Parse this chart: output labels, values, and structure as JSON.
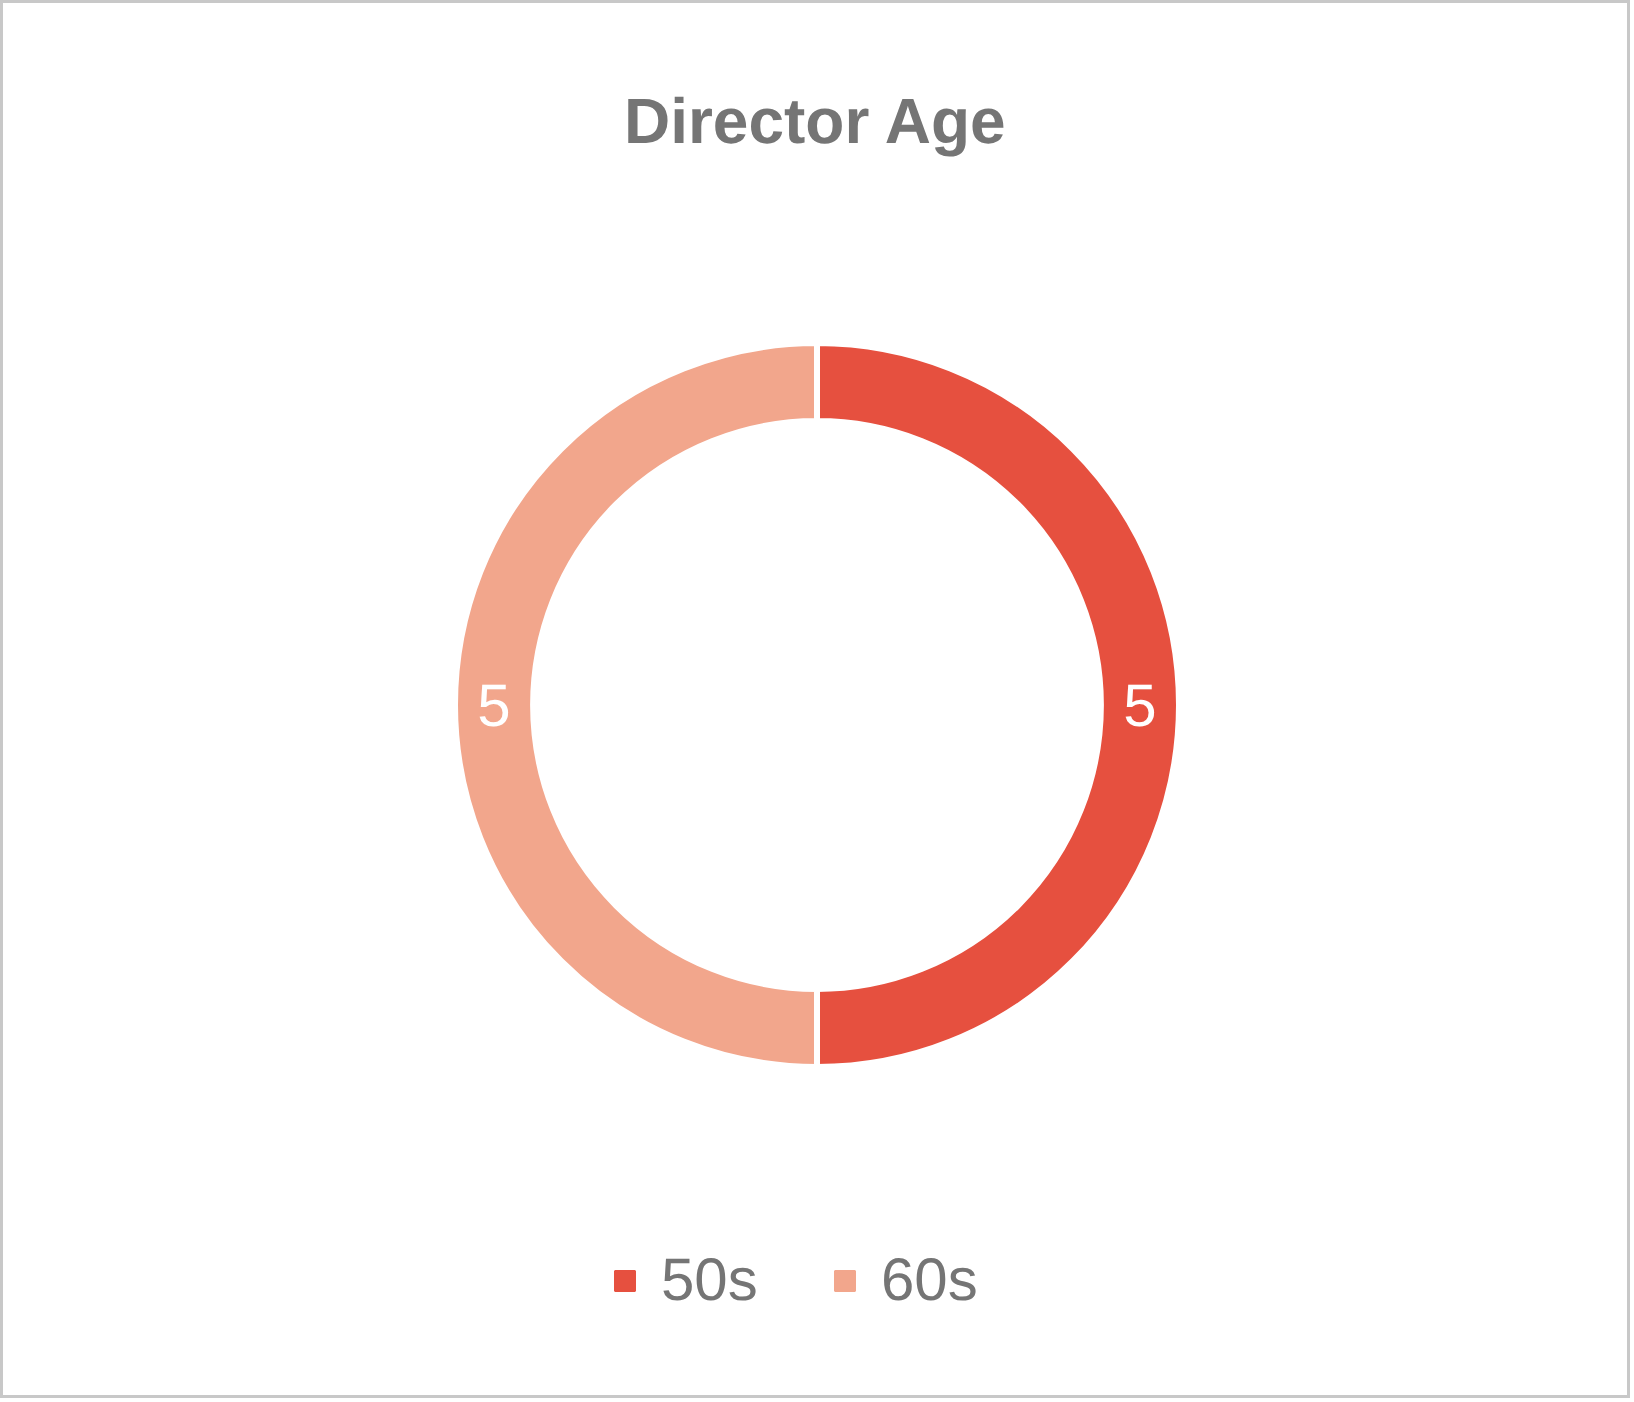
{
  "chart_data": {
    "type": "donut",
    "title": "Director Age",
    "categories": [
      "50s",
      "60s"
    ],
    "values": [
      5,
      5
    ],
    "colors": [
      "#e6503f",
      "#f2a68c"
    ],
    "data_labels": true,
    "legend": "bottom"
  }
}
